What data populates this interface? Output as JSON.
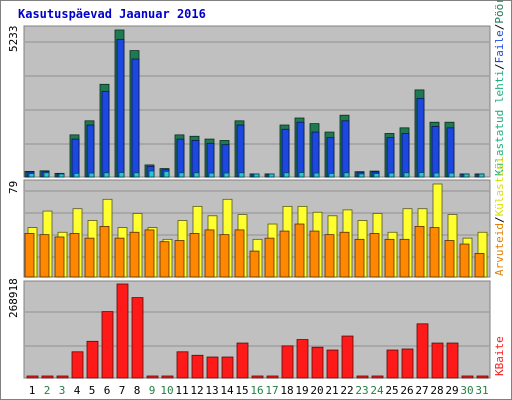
{
  "chart_data": {
    "type": "bar",
    "title": "Kasutuspäevad Jaanuar 2016",
    "categories": [
      "1",
      "2",
      "3",
      "4",
      "5",
      "6",
      "7",
      "8",
      "9",
      "10",
      "11",
      "12",
      "13",
      "14",
      "15",
      "16",
      "17",
      "18",
      "19",
      "20",
      "21",
      "22",
      "23",
      "24",
      "25",
      "26",
      "27",
      "28",
      "29",
      "30",
      "31"
    ],
    "weekend_days": [
      "2",
      "3",
      "9",
      "10",
      "16",
      "17",
      "23",
      "24",
      "30",
      "31"
    ],
    "panels": [
      {
        "id": "top",
        "ymax_label": "5233",
        "ymax": 5233,
        "right_labels": [
          "Pöördumisi",
          "/",
          "Faile",
          "/",
          "Külastatud lehti"
        ],
        "series": [
          {
            "name": "Pöördumisi",
            "color": "#1f7a52",
            "values": [
              200,
              220,
              130,
              1500,
              2000,
              3300,
              5233,
              4500,
              430,
              300,
              1500,
              1450,
              1350,
              1300,
              2000,
              110,
              110,
              1850,
              2100,
              1900,
              1600,
              2200,
              190,
              210,
              1550,
              1750,
              3100,
              1950,
              1950,
              110,
              110
            ]
          },
          {
            "name": "Faile",
            "color": "#1c48e0",
            "values": [
              180,
              190,
              110,
              1350,
              1850,
              3050,
              4900,
              4200,
              380,
              260,
              1350,
              1300,
              1200,
              1150,
              1850,
              100,
              95,
              1700,
              1950,
              1600,
              1400,
              2000,
              170,
              180,
              1400,
              1550,
              2800,
              1800,
              1750,
              95,
              95
            ]
          },
          {
            "name": "Külastatud lehti",
            "color": "#26c7d9",
            "values": [
              120,
              150,
              90,
              130,
              140,
              150,
              160,
              150,
              250,
              200,
              150,
              150,
              140,
              140,
              150,
              90,
              90,
              150,
              160,
              140,
              130,
              150,
              110,
              120,
              140,
              150,
              160,
              140,
              140,
              80,
              80
            ]
          }
        ]
      },
      {
        "id": "middle",
        "ymax_label": "79",
        "ymax": 79,
        "right_labels": [
          "Arvuteid",
          "/",
          "Külastusi"
        ],
        "series": [
          {
            "name": "Külastusi",
            "color": "#ffff30",
            "values": [
              42,
              56,
              38,
              58,
              48,
              66,
              42,
              54,
              42,
              32,
              48,
              60,
              52,
              66,
              53,
              32,
              45,
              60,
              60,
              55,
              52,
              57,
              48,
              54,
              38,
              58,
              58,
              79,
              53,
              33,
              38
            ]
          },
          {
            "name": "Arvuteid",
            "color": "#ff8800",
            "values": [
              37,
              36,
              34,
              37,
              33,
              43,
              33,
              38,
              40,
              30,
              31,
              37,
              40,
              36,
              40,
              22,
              33,
              39,
              45,
              39,
              36,
              38,
              32,
              37,
              32,
              32,
              43,
              42,
              31,
              28,
              20
            ]
          }
        ]
      },
      {
        "id": "bottom",
        "ymax_label": "268918",
        "ymax": 268918,
        "right_labels": [
          "KBaite"
        ],
        "series": [
          {
            "name": "KBaite",
            "color": "#ff1a1a",
            "values": [
              1500,
              1500,
              1500,
              75000,
              105000,
              190000,
              268918,
              230000,
              1500,
              1500,
              75000,
              65000,
              60000,
              60000,
              100000,
              1500,
              1500,
              92000,
              110000,
              88000,
              80000,
              120000,
              1500,
              4000,
              80000,
              83000,
              155000,
              100000,
              100000,
              3000,
              3000
            ]
          }
        ]
      }
    ]
  }
}
